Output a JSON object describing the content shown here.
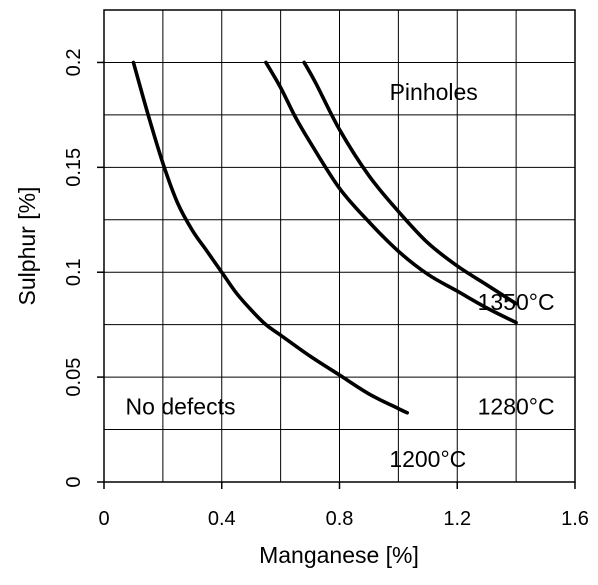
{
  "chart_data": {
    "type": "line",
    "xlabel": "Manganese [%]",
    "ylabel": "Sulphur [%]",
    "xlim": [
      0,
      1.6
    ],
    "ylim": [
      0,
      0.2
    ],
    "x_ticks": [
      0,
      0.4,
      0.8,
      1.2,
      1.6
    ],
    "x_tick_labels": [
      "0",
      "0.4",
      "0.8",
      "1.2",
      "1.6"
    ],
    "y_ticks": [
      0,
      0.05,
      0.1,
      0.15,
      0.2
    ],
    "y_tick_labels": [
      "0",
      "0.05",
      "0.1",
      "0.15",
      "0.2"
    ],
    "grid": true,
    "grid_x_step": 0.2,
    "grid_y_step": 0.025,
    "series": [
      {
        "name": "1200°C",
        "x": [
          0.1,
          0.15,
          0.2,
          0.25,
          0.3,
          0.35,
          0.4,
          0.45,
          0.5,
          0.55,
          0.6,
          0.7,
          0.8,
          0.9,
          1.0,
          1.03
        ],
        "y": [
          0.2,
          0.175,
          0.152,
          0.133,
          0.12,
          0.11,
          0.1,
          0.09,
          0.082,
          0.075,
          0.07,
          0.06,
          0.051,
          0.042,
          0.035,
          0.033
        ]
      },
      {
        "name": "1280°C",
        "x": [
          0.55,
          0.6,
          0.65,
          0.7,
          0.8,
          0.9,
          1.0,
          1.1,
          1.2,
          1.3,
          1.4
        ],
        "y": [
          0.2,
          0.188,
          0.174,
          0.162,
          0.14,
          0.124,
          0.11,
          0.099,
          0.091,
          0.083,
          0.076
        ]
      },
      {
        "name": "1350°C",
        "x": [
          0.68,
          0.72,
          0.8,
          0.9,
          1.0,
          1.1,
          1.2,
          1.3,
          1.4
        ],
        "y": [
          0.2,
          0.19,
          0.168,
          0.146,
          0.129,
          0.114,
          0.103,
          0.094,
          0.085
        ]
      }
    ],
    "annotations": [
      {
        "text": "Pinholes",
        "x": 1.12,
        "y": 0.185
      },
      {
        "text": "No defects",
        "x": 0.26,
        "y": 0.035
      },
      {
        "text": "1350°C",
        "x": 1.4,
        "y": 0.085
      },
      {
        "text": "1280°C",
        "x": 1.4,
        "y": 0.035
      },
      {
        "text": "1200°C",
        "x": 1.1,
        "y": 0.01
      }
    ]
  }
}
